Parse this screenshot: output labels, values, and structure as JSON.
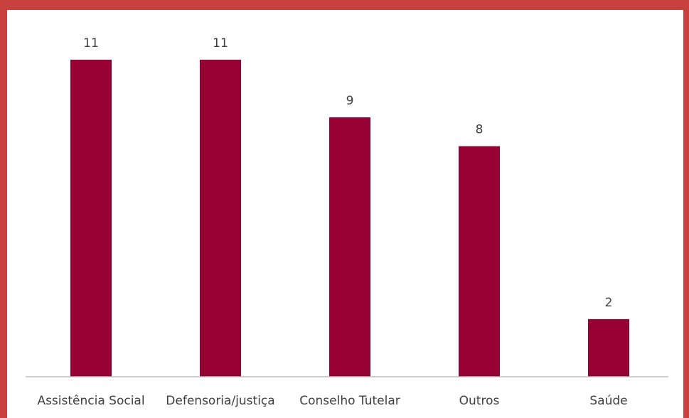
{
  "colors": {
    "background_border": "#c8413f",
    "bar": "#960032",
    "axis": "#bfbfbf",
    "text": "#404040"
  },
  "chart_data": {
    "type": "bar",
    "categories": [
      "Assistência Social",
      "Defensoria/justiça",
      "Conselho Tutelar",
      "Outros",
      "Saúde"
    ],
    "values": [
      11,
      11,
      9,
      8,
      2
    ],
    "data_labels": [
      "11",
      "11",
      "9",
      "8",
      "2"
    ],
    "ylim": [
      0,
      11
    ],
    "grid": false,
    "legend": "none"
  }
}
